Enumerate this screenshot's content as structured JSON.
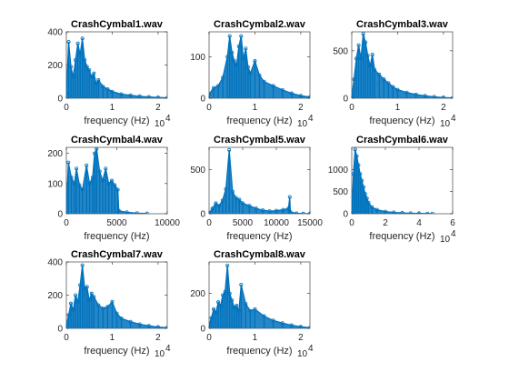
{
  "figure": {
    "background": "#ffffff",
    "line_color": "#0072bd",
    "axis_color": "#262626"
  },
  "chart_data": [
    {
      "type": "line",
      "title": "CrashCymbal1.wav",
      "xlabel": "frequency (Hz)",
      "x_exponent_label": "10",
      "x_exponent_power": "4",
      "xlim": [
        0,
        2.2
      ],
      "ylim": [
        0,
        400
      ],
      "xticks": [
        0,
        1,
        2
      ],
      "xtick_labels": [
        "0",
        "1",
        "2"
      ],
      "yticks": [
        0,
        200,
        400
      ],
      "ytick_labels": [
        "0",
        "200",
        "400"
      ],
      "series": [
        {
          "x": [
            0,
            0.05,
            0.1,
            0.15,
            0.2,
            0.25,
            0.3,
            0.35,
            0.4,
            0.45,
            0.5,
            0.55,
            0.6,
            0.65,
            0.7,
            0.8,
            0.9,
            1.0,
            1.2,
            1.4,
            1.6,
            1.8,
            2.0,
            2.2
          ],
          "y": [
            30,
            340,
            190,
            130,
            230,
            330,
            265,
            360,
            230,
            190,
            170,
            130,
            150,
            90,
            110,
            70,
            55,
            40,
            25,
            18,
            12,
            8,
            5,
            3
          ]
        }
      ]
    },
    {
      "type": "line",
      "title": "CrashCymbal2.wav",
      "xlabel": "frequency (Hz)",
      "x_exponent_label": "10",
      "x_exponent_power": "4",
      "xlim": [
        0,
        2.2
      ],
      "ylim": [
        0,
        160
      ],
      "xticks": [
        0,
        1,
        2
      ],
      "xtick_labels": [
        "0",
        "1",
        "2"
      ],
      "yticks": [
        0,
        100
      ],
      "ytick_labels": [
        "0",
        "100"
      ],
      "series": [
        {
          "x": [
            0,
            0.1,
            0.2,
            0.3,
            0.4,
            0.45,
            0.5,
            0.55,
            0.6,
            0.65,
            0.7,
            0.75,
            0.8,
            0.85,
            0.9,
            1.0,
            1.1,
            1.2,
            1.4,
            1.6,
            1.8,
            2.0,
            2.2
          ],
          "y": [
            10,
            25,
            30,
            50,
            100,
            150,
            110,
            90,
            80,
            125,
            150,
            95,
            120,
            75,
            60,
            90,
            55,
            40,
            30,
            20,
            12,
            6,
            3
          ]
        }
      ]
    },
    {
      "type": "line",
      "title": "CrashCymbal3.wav",
      "xlabel": "frequency (Hz)",
      "x_exponent_label": "10",
      "x_exponent_power": "4",
      "xlim": [
        0,
        2.2
      ],
      "ylim": [
        0,
        700
      ],
      "xticks": [
        0,
        1,
        2
      ],
      "xtick_labels": [
        "0",
        "1",
        "2"
      ],
      "yticks": [
        0,
        500
      ],
      "ytick_labels": [
        "0",
        "500"
      ],
      "series": [
        {
          "x": [
            0,
            0.05,
            0.1,
            0.15,
            0.2,
            0.25,
            0.3,
            0.35,
            0.4,
            0.45,
            0.5,
            0.6,
            0.7,
            0.8,
            0.9,
            1.0,
            1.2,
            1.4,
            1.6,
            1.8,
            2.0,
            2.2
          ],
          "y": [
            20,
            200,
            420,
            560,
            420,
            680,
            590,
            450,
            340,
            460,
            300,
            250,
            200,
            160,
            120,
            90,
            60,
            40,
            25,
            15,
            8,
            4
          ]
        }
      ]
    },
    {
      "type": "line",
      "title": "CrashCymbal4.wav",
      "xlabel": "frequency (Hz)",
      "x_exponent_label": "",
      "x_exponent_power": "",
      "xlim": [
        0,
        10000
      ],
      "ylim": [
        0,
        220
      ],
      "xticks": [
        0,
        5000,
        10000
      ],
      "xtick_labels": [
        "0",
        "5000",
        "10000"
      ],
      "yticks": [
        0,
        100,
        200
      ],
      "ytick_labels": [
        "0",
        "100",
        "200"
      ],
      "series": [
        {
          "x": [
            0,
            200,
            500,
            800,
            1000,
            1300,
            1600,
            2000,
            2300,
            2600,
            2800,
            3000,
            3300,
            3600,
            3900,
            4200,
            4500,
            4800,
            5100,
            5200,
            6000,
            7000,
            8000
          ],
          "y": [
            20,
            170,
            120,
            100,
            150,
            95,
            80,
            160,
            100,
            120,
            200,
            215,
            140,
            110,
            150,
            100,
            110,
            95,
            80,
            10,
            5,
            2,
            1
          ]
        }
      ]
    },
    {
      "type": "line",
      "title": "CrashCymbal5.wav",
      "xlabel": "frequency (Hz)",
      "x_exponent_label": "",
      "x_exponent_power": "",
      "xlim": [
        0,
        15000
      ],
      "ylim": [
        0,
        750
      ],
      "xticks": [
        0,
        5000,
        10000,
        15000
      ],
      "xtick_labels": [
        "0",
        "5000",
        "10000",
        "15000"
      ],
      "yticks": [
        0,
        500
      ],
      "ytick_labels": [
        "0",
        "500"
      ],
      "series": [
        {
          "x": [
            0,
            500,
            1000,
            1500,
            2000,
            2500,
            3000,
            3500,
            4000,
            4500,
            5000,
            6000,
            7000,
            8000,
            9000,
            10000,
            11000,
            11800,
            12000,
            12100,
            13000,
            14000,
            15000
          ],
          "y": [
            10,
            60,
            120,
            90,
            150,
            280,
            720,
            250,
            180,
            160,
            120,
            90,
            60,
            40,
            30,
            35,
            45,
            60,
            190,
            20,
            5,
            2,
            1
          ]
        }
      ]
    },
    {
      "type": "line",
      "title": "CrashCymbal6.wav",
      "xlabel": "frequency (Hz)",
      "x_exponent_label": "10",
      "x_exponent_power": "4",
      "xlim": [
        0,
        6
      ],
      "ylim": [
        0,
        1500
      ],
      "xticks": [
        0,
        2,
        4,
        6
      ],
      "xtick_labels": [
        "0",
        "2",
        "4",
        "6"
      ],
      "yticks": [
        0,
        500,
        1000
      ],
      "ytick_labels": [
        "0",
        "500",
        "1000"
      ],
      "series": [
        {
          "x": [
            0,
            0.1,
            0.2,
            0.3,
            0.4,
            0.5,
            0.6,
            0.7,
            0.8,
            0.9,
            1.0,
            1.2,
            1.5,
            2.0,
            2.5,
            3.0,
            3.5,
            4.0,
            4.5,
            4.8
          ],
          "y": [
            50,
            900,
            1450,
            1300,
            1100,
            900,
            750,
            600,
            450,
            350,
            250,
            150,
            90,
            50,
            30,
            20,
            12,
            8,
            5,
            3
          ]
        }
      ]
    },
    {
      "type": "line",
      "title": "CrashCymbal7.wav",
      "xlabel": "frequency (Hz)",
      "x_exponent_label": "10",
      "x_exponent_power": "4",
      "xlim": [
        0,
        2.2
      ],
      "ylim": [
        0,
        400
      ],
      "xticks": [
        0,
        1,
        2
      ],
      "xtick_labels": [
        "0",
        "1",
        "2"
      ],
      "yticks": [
        0,
        200,
        400
      ],
      "ytick_labels": [
        "0",
        "200",
        "400"
      ],
      "series": [
        {
          "x": [
            0,
            0.05,
            0.1,
            0.15,
            0.2,
            0.25,
            0.3,
            0.35,
            0.4,
            0.45,
            0.5,
            0.55,
            0.6,
            0.7,
            0.8,
            0.9,
            1.0,
            1.1,
            1.2,
            1.4,
            1.6,
            1.8,
            2.0,
            2.2
          ],
          "y": [
            20,
            80,
            150,
            110,
            200,
            160,
            260,
            380,
            240,
            250,
            170,
            210,
            190,
            140,
            120,
            130,
            160,
            90,
            60,
            40,
            25,
            15,
            8,
            4
          ]
        }
      ]
    },
    {
      "type": "line",
      "title": "CrashCymbal8.wav",
      "xlabel": "frequency (Hz)",
      "x_exponent_label": "10",
      "x_exponent_power": "4",
      "xlim": [
        0,
        2.2
      ],
      "ylim": [
        0,
        380
      ],
      "xticks": [
        0,
        1,
        2
      ],
      "xtick_labels": [
        "0",
        "1",
        "2"
      ],
      "yticks": [
        0,
        200
      ],
      "ytick_labels": [
        "0",
        "200"
      ],
      "series": [
        {
          "x": [
            0,
            0.05,
            0.1,
            0.15,
            0.2,
            0.25,
            0.3,
            0.35,
            0.4,
            0.45,
            0.5,
            0.55,
            0.6,
            0.65,
            0.7,
            0.8,
            0.9,
            1.0,
            1.2,
            1.4,
            1.6,
            1.8,
            2.0,
            2.2
          ],
          "y": [
            20,
            60,
            110,
            90,
            150,
            130,
            190,
            210,
            360,
            200,
            160,
            120,
            130,
            100,
            250,
            140,
            100,
            110,
            70,
            45,
            30,
            18,
            9,
            4
          ]
        }
      ]
    }
  ]
}
